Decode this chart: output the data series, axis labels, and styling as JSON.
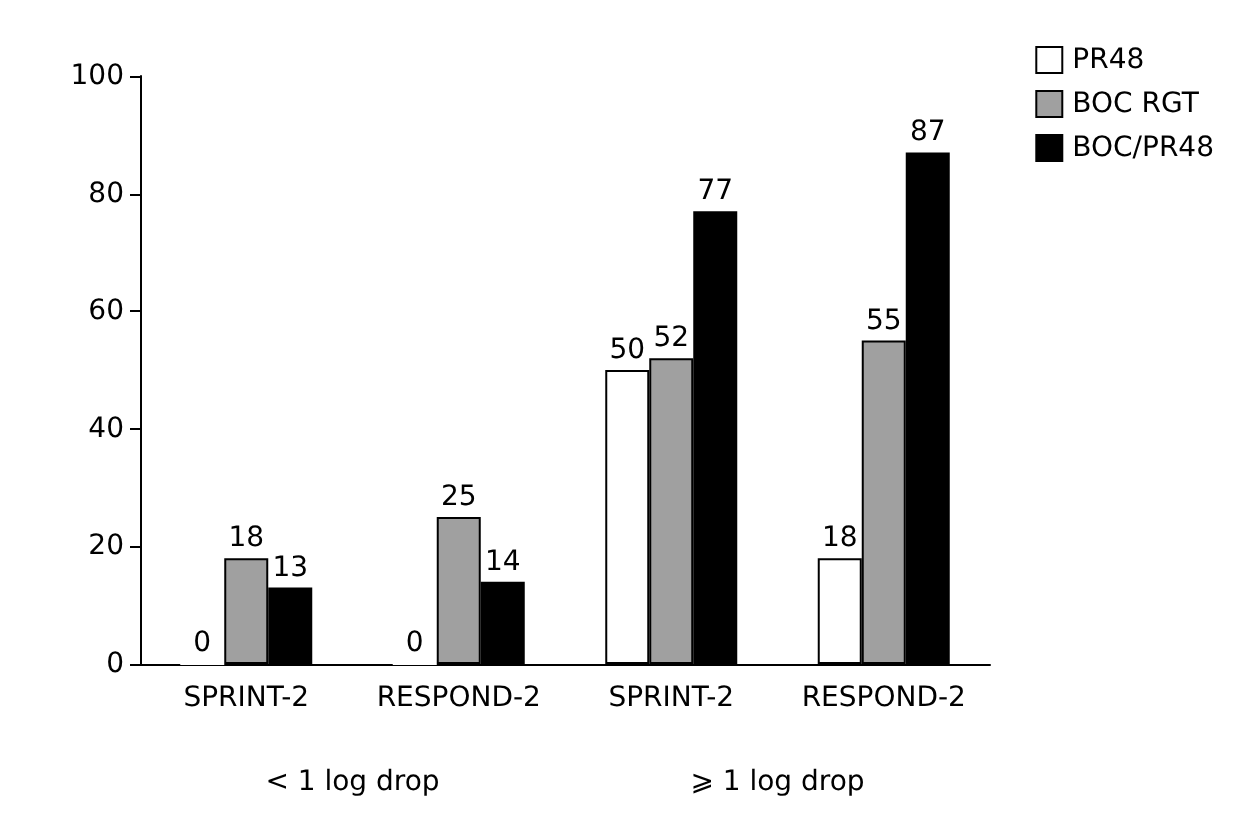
{
  "chart_data": {
    "type": "bar",
    "categories": [
      "SPRINT-2",
      "RESPOND-2",
      "SPRINT-2",
      "RESPOND-2"
    ],
    "series": [
      {
        "name": "PR48",
        "color": "#ffffff",
        "values": [
          0,
          0,
          50,
          18
        ]
      },
      {
        "name": "BOC RGT",
        "color": "#a0a0a0",
        "values": [
          18,
          25,
          52,
          55
        ]
      },
      {
        "name": "BOC/PR48",
        "color": "#000000",
        "values": [
          13,
          14,
          77,
          87
        ]
      }
    ],
    "ylim": [
      0,
      100
    ],
    "yticks": [
      0,
      20,
      40,
      60,
      80,
      100
    ],
    "grid": false,
    "legend": "top right",
    "data_labels": true,
    "annotations": [
      "< 1 log drop",
      "⩾ 1 log drop"
    ]
  }
}
